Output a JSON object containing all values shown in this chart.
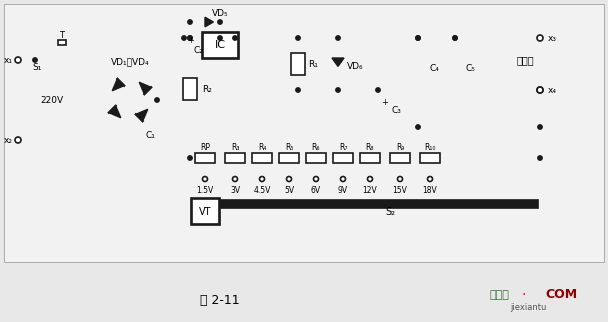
{
  "bg_color": "#e8e8e8",
  "circuit_bg": "#f5f5f5",
  "line_color": "#1a1a1a",
  "title": "图 2-11",
  "watermark1": "接线图",
  "watermark2": "COM",
  "watermark3": "jiexiantu",
  "lw": 1.2,
  "lw_thick": 4.0
}
